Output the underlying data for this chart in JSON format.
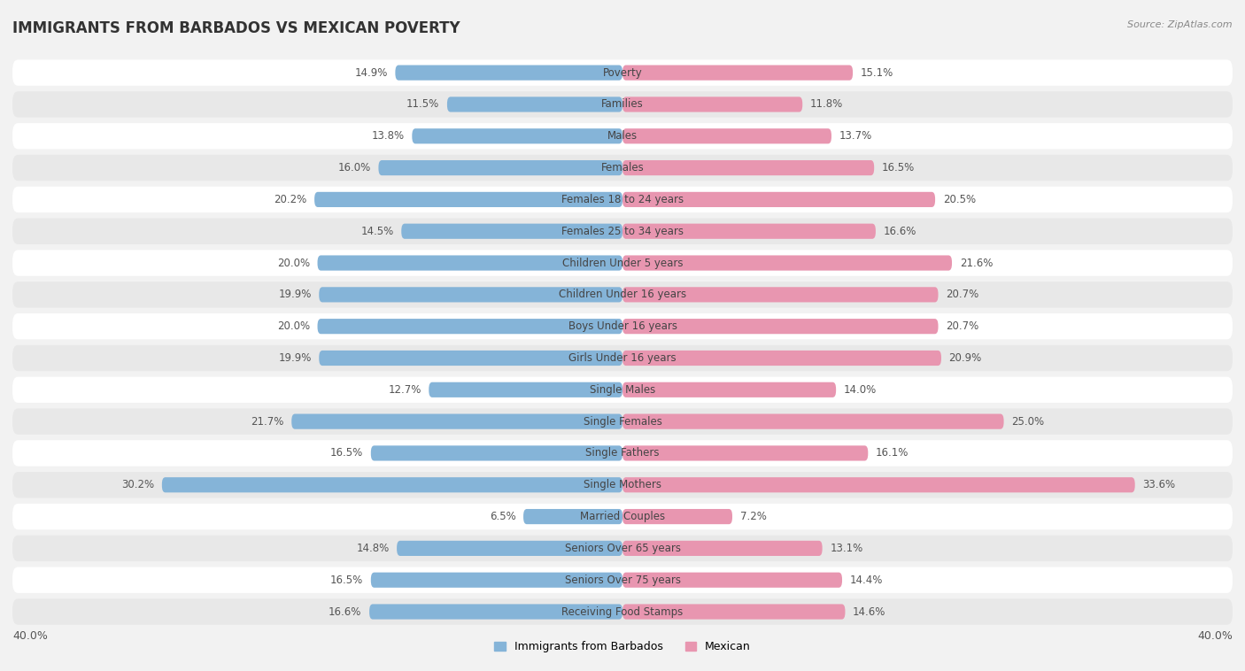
{
  "title": "IMMIGRANTS FROM BARBADOS VS MEXICAN POVERTY",
  "source": "Source: ZipAtlas.com",
  "categories": [
    "Poverty",
    "Families",
    "Males",
    "Females",
    "Females 18 to 24 years",
    "Females 25 to 34 years",
    "Children Under 5 years",
    "Children Under 16 years",
    "Boys Under 16 years",
    "Girls Under 16 years",
    "Single Males",
    "Single Females",
    "Single Fathers",
    "Single Mothers",
    "Married Couples",
    "Seniors Over 65 years",
    "Seniors Over 75 years",
    "Receiving Food Stamps"
  ],
  "barbados_values": [
    14.9,
    11.5,
    13.8,
    16.0,
    20.2,
    14.5,
    20.0,
    19.9,
    20.0,
    19.9,
    12.7,
    21.7,
    16.5,
    30.2,
    6.5,
    14.8,
    16.5,
    16.6
  ],
  "mexican_values": [
    15.1,
    11.8,
    13.7,
    16.5,
    20.5,
    16.6,
    21.6,
    20.7,
    20.7,
    20.9,
    14.0,
    25.0,
    16.1,
    33.6,
    7.2,
    13.1,
    14.4,
    14.6
  ],
  "barbados_color": "#85b4d8",
  "mexican_color": "#e896b0",
  "barbados_label": "Immigrants from Barbados",
  "mexican_label": "Mexican",
  "max_value": 40.0,
  "bg_color": "#f2f2f2",
  "row_color_light": "#ffffff",
  "row_color_dark": "#e8e8e8",
  "title_fontsize": 12,
  "label_fontsize": 8.5,
  "value_fontsize": 8.5,
  "axis_label_fontsize": 9,
  "legend_fontsize": 9
}
